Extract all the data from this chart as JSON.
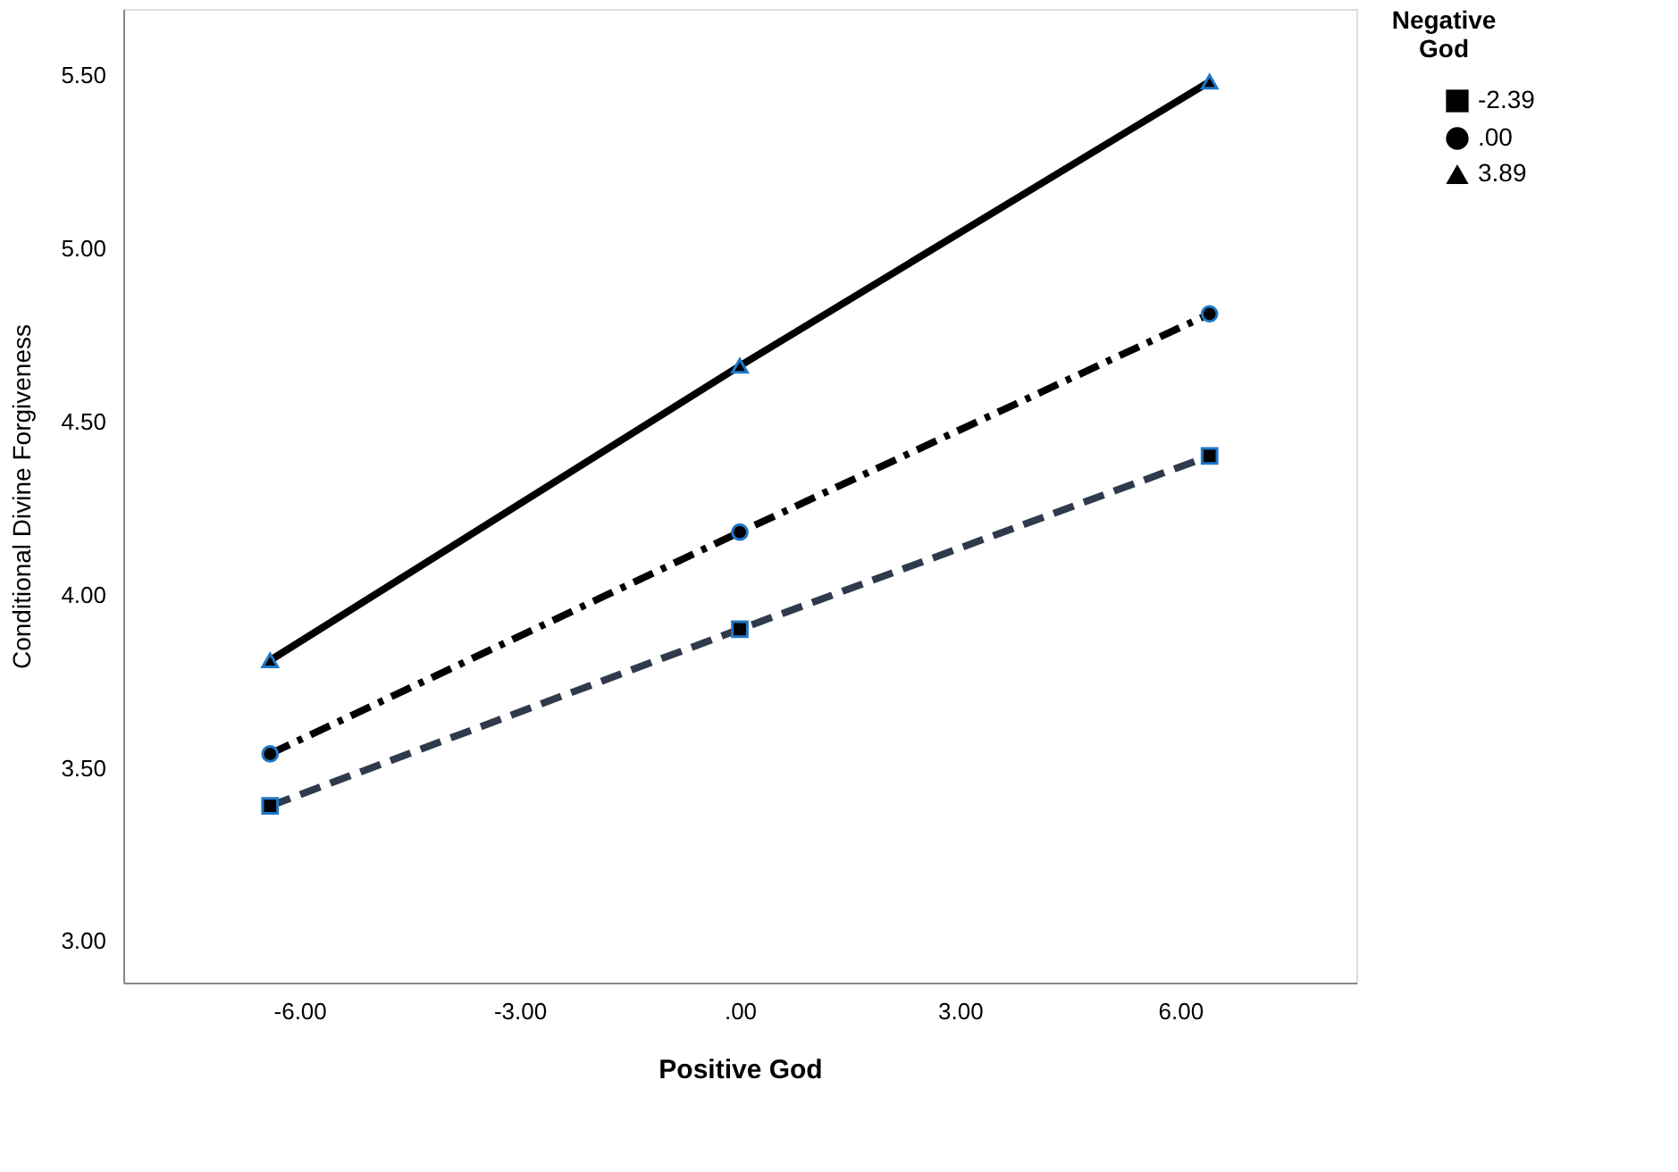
{
  "chart_data": {
    "type": "line",
    "xlabel": "Positive God",
    "ylabel": "Conditional Divine Forgiveness",
    "legend_title": "Negative God",
    "x": [
      -6.4,
      0,
      6.4
    ],
    "series": [
      {
        "name": "-2.39",
        "color": "#2f3a4d",
        "values": [
          3.39,
          3.9,
          4.4
        ],
        "marker": "square",
        "line_style": "dashed"
      },
      {
        "name": ".00",
        "color": "#000000",
        "values": [
          3.54,
          4.18,
          4.81
        ],
        "marker": "circle",
        "line_style": "dashdot"
      },
      {
        "name": "3.89",
        "color": "#000000",
        "values": [
          3.81,
          4.66,
          5.48
        ],
        "marker": "triangle",
        "line_style": "solid"
      }
    ],
    "xlim": [
      -8.4,
      8.4
    ],
    "ylim": [
      2.88,
      5.69
    ],
    "xticks": [
      {
        "value": -6,
        "label": "-6.00"
      },
      {
        "value": -3,
        "label": "-3.00"
      },
      {
        "value": 0,
        "label": ".00"
      },
      {
        "value": 3,
        "label": "3.00"
      },
      {
        "value": 6,
        "label": "6.00"
      }
    ],
    "yticks": [
      {
        "value": 3,
        "label": "3.00"
      },
      {
        "value": 3.5,
        "label": "3.50"
      },
      {
        "value": 4,
        "label": "4.00"
      },
      {
        "value": 4.5,
        "label": "4.50"
      },
      {
        "value": 5,
        "label": "5.00"
      },
      {
        "value": 5.5,
        "label": "5.50"
      }
    ],
    "grid": false,
    "legend": "top right"
  }
}
